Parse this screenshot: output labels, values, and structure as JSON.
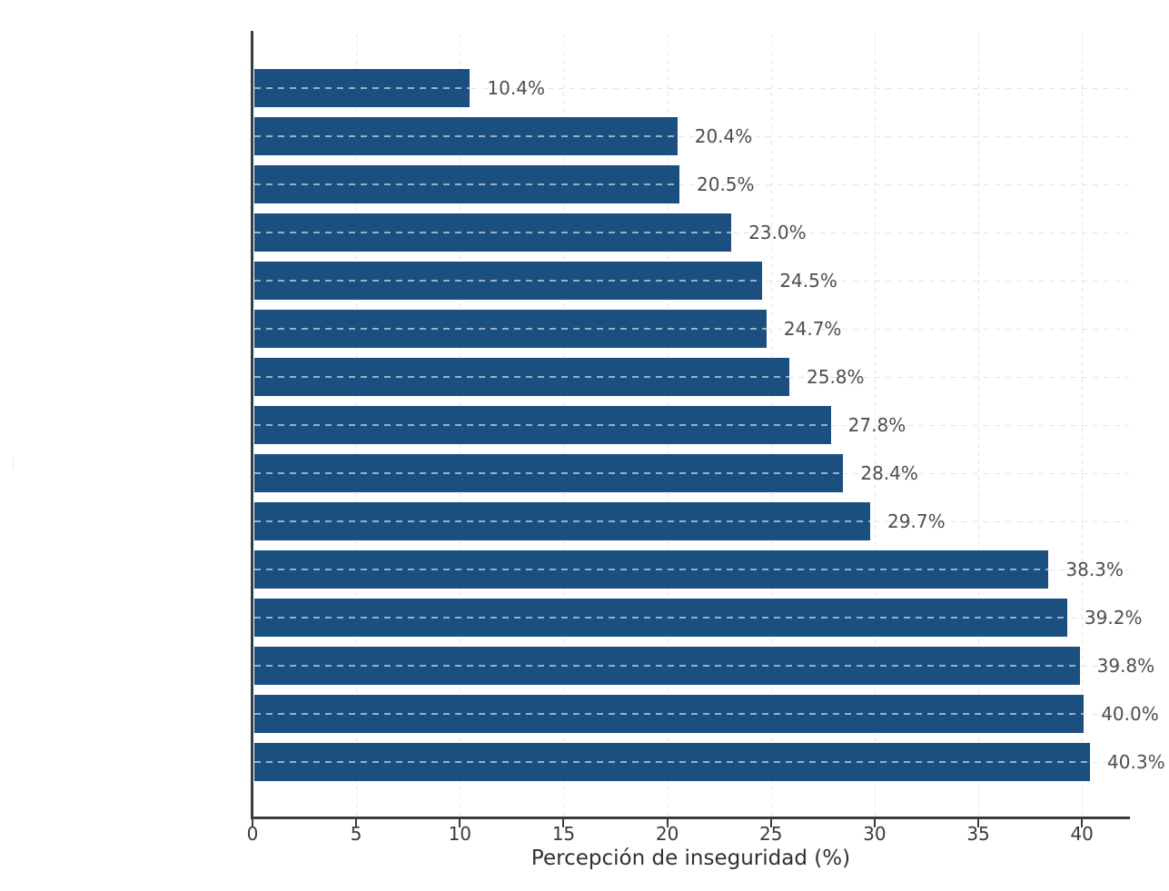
{
  "figure": {
    "background": "#ffffff",
    "xlabel": "Percepción de inseguridad (%)",
    "faint_left_mark": "¦"
  },
  "chart_data": {
    "type": "bar",
    "orientation": "horizontal",
    "title": "",
    "xlabel": "Percepción de inseguridad (%)",
    "ylabel": "",
    "values": [
      10.4,
      20.4,
      20.5,
      23.0,
      24.5,
      24.7,
      25.8,
      27.8,
      28.4,
      29.7,
      38.3,
      39.2,
      39.8,
      40.0,
      40.3
    ],
    "bar_labels": [
      "10.4%",
      "20.4%",
      "20.5%",
      "23.0%",
      "24.5%",
      "24.7%",
      "25.8%",
      "27.8%",
      "28.4%",
      "29.7%",
      "38.3%",
      "39.2%",
      "39.8%",
      "40.0%",
      "40.3%"
    ],
    "bar_order": "top-to-bottom ascending",
    "xticks": [
      0,
      5,
      10,
      15,
      20,
      25,
      30,
      35,
      40
    ],
    "xtick_labels": [
      "0",
      "5",
      "10",
      "15",
      "20",
      "25",
      "30",
      "35",
      "40"
    ],
    "xlim": [
      0,
      42.3
    ],
    "grid": true,
    "grid_style": "dashed",
    "legend": "none",
    "y_category_labels_visible": false,
    "colors": {
      "bar": "#1b4f80",
      "axis_spine": "#3a3d40",
      "tick_label": "#3a3a3a",
      "value_label": "#4d4d4d",
      "gridline": "#e2e6ea",
      "bar_center_dash": "rgba(255,255,255,0.55)"
    }
  }
}
